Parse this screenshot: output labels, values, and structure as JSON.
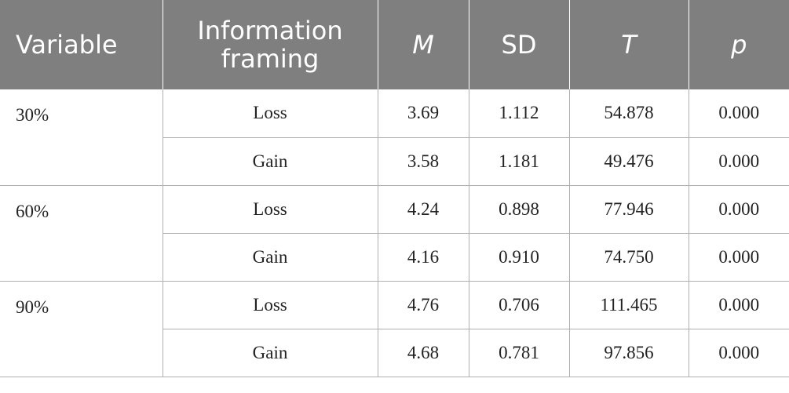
{
  "table": {
    "headers": {
      "variable": "Variable",
      "framing": "Information framing",
      "m": "M",
      "sd": "SD",
      "t": "T",
      "p": "p"
    },
    "groups": [
      {
        "variable": "30%",
        "rows": [
          {
            "framing": "Loss",
            "m": "3.69",
            "sd": "1.112",
            "t": "54.878",
            "p": "0.000"
          },
          {
            "framing": "Gain",
            "m": "3.58",
            "sd": "1.181",
            "t": "49.476",
            "p": "0.000"
          }
        ]
      },
      {
        "variable": "60%",
        "rows": [
          {
            "framing": "Loss",
            "m": "4.24",
            "sd": "0.898",
            "t": "77.946",
            "p": "0.000"
          },
          {
            "framing": "Gain",
            "m": "4.16",
            "sd": "0.910",
            "t": "74.750",
            "p": "0.000"
          }
        ]
      },
      {
        "variable": "90%",
        "rows": [
          {
            "framing": "Loss",
            "m": "4.76",
            "sd": "0.706",
            "t": "111.465",
            "p": "0.000"
          },
          {
            "framing": "Gain",
            "m": "4.68",
            "sd": "0.781",
            "t": "97.856",
            "p": "0.000"
          }
        ]
      }
    ]
  }
}
